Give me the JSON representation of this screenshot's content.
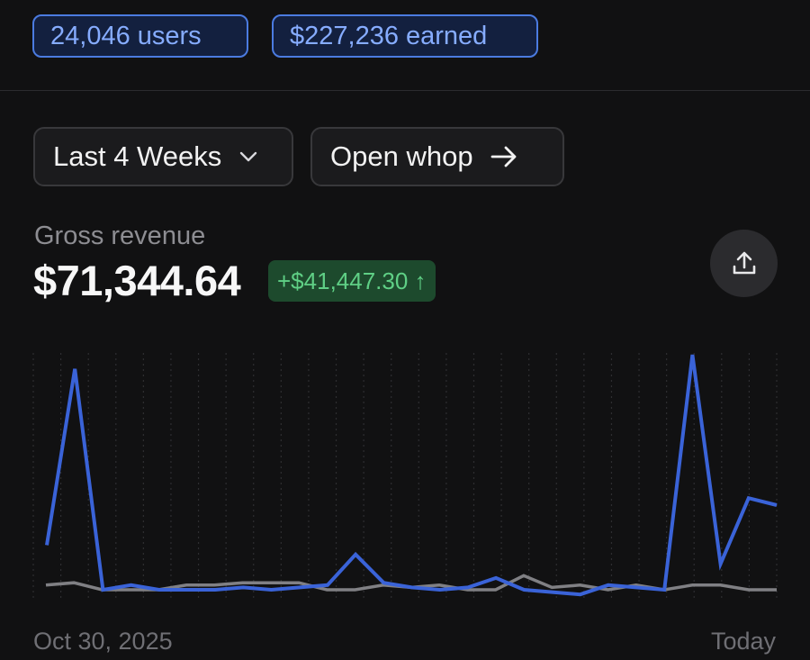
{
  "header": {
    "users_badge": "24,046 users",
    "earned_badge": "$227,236 earned"
  },
  "controls": {
    "range_label": "Last 4 Weeks",
    "open_label": "Open whop"
  },
  "metric": {
    "label": "Gross revenue",
    "value": "$71,344.64",
    "change": "+$41,447.30 ↑"
  },
  "icons": {
    "dropdown": "chevron-down-icon",
    "open": "arrow-right-icon",
    "share": "share-icon",
    "change": "arrow-up-icon"
  },
  "colors": {
    "badge_accent": "#4b7be0",
    "current_series": "#3a63d8",
    "previous_series": "#808084",
    "positive_change": "#5fcf85"
  },
  "chart_data": {
    "type": "line",
    "x_start_label": "Oct 30, 2025",
    "x_end_label": "Today",
    "grid": true,
    "series": [
      {
        "values": [
          0.19,
          0.94,
          0.0,
          0.02,
          0.0,
          0.0,
          0.0,
          0.01,
          0.0,
          0.01,
          0.02,
          0.15,
          0.03,
          0.01,
          0.0,
          0.01,
          0.05,
          0.0,
          -0.01,
          -0.02,
          0.02,
          0.01,
          0.0,
          1.0,
          0.11,
          0.39,
          0.36
        ]
      },
      {
        "values": [
          0.02,
          0.03,
          0.0,
          0.0,
          0.0,
          0.02,
          0.02,
          0.03,
          0.03,
          0.03,
          0.0,
          0.0,
          0.02,
          0.01,
          0.02,
          0.0,
          0.0,
          0.06,
          0.01,
          0.02,
          0.0,
          0.02,
          0.0,
          0.02,
          0.02,
          0.0,
          0.0
        ]
      }
    ]
  }
}
